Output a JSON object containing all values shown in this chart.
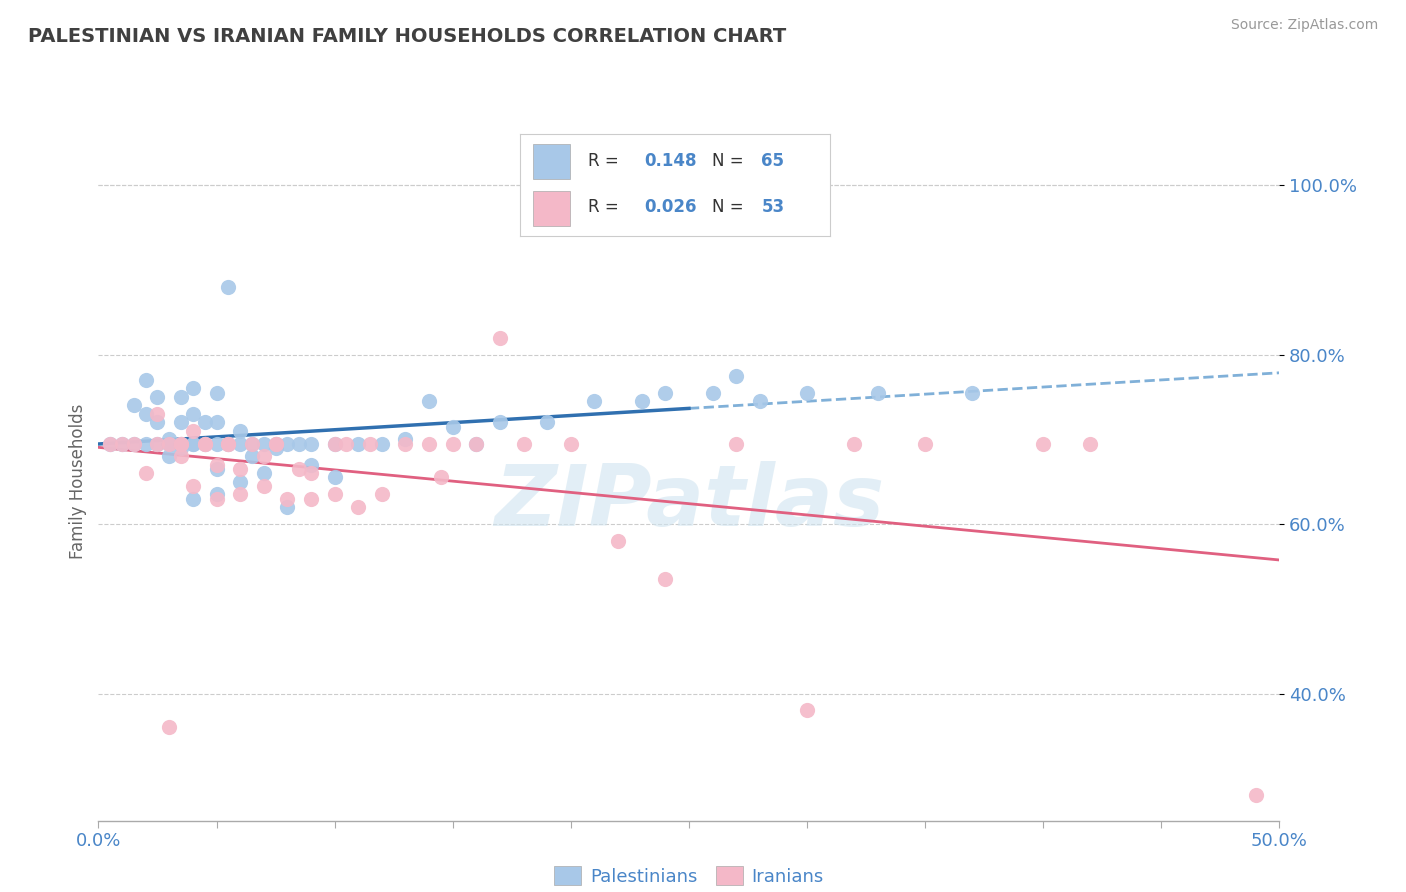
{
  "title": "PALESTINIAN VS IRANIAN FAMILY HOUSEHOLDS CORRELATION CHART",
  "source": "Source: ZipAtlas.com",
  "ylabel": "Family Households",
  "xlim": [
    0.0,
    0.5
  ],
  "ylim": [
    0.25,
    1.05
  ],
  "xticks": [
    0.0,
    0.05,
    0.1,
    0.15,
    0.2,
    0.25,
    0.3,
    0.35,
    0.4,
    0.45,
    0.5
  ],
  "xticklabels": [
    "0.0%",
    "",
    "",
    "",
    "",
    "",
    "",
    "",
    "",
    "",
    "50.0%"
  ],
  "yticks": [
    0.4,
    0.6,
    0.8,
    1.0
  ],
  "yticklabels": [
    "40.0%",
    "60.0%",
    "80.0%",
    "100.0%"
  ],
  "palestinian_color": "#a8c8e8",
  "iranian_color": "#f4b8c8",
  "trend_blue_color": "#3070b0",
  "trend_pink_color": "#e06080",
  "dashed_line_color": "#80b0d8",
  "watermark": "ZIPatlas",
  "palestinian_x": [
    0.005,
    0.01,
    0.015,
    0.015,
    0.02,
    0.02,
    0.02,
    0.025,
    0.025,
    0.025,
    0.03,
    0.03,
    0.03,
    0.03,
    0.035,
    0.035,
    0.035,
    0.035,
    0.04,
    0.04,
    0.04,
    0.04,
    0.04,
    0.045,
    0.045,
    0.05,
    0.05,
    0.05,
    0.05,
    0.05,
    0.055,
    0.055,
    0.06,
    0.06,
    0.06,
    0.065,
    0.065,
    0.07,
    0.07,
    0.075,
    0.075,
    0.08,
    0.08,
    0.085,
    0.09,
    0.09,
    0.1,
    0.1,
    0.11,
    0.12,
    0.13,
    0.14,
    0.15,
    0.16,
    0.17,
    0.19,
    0.21,
    0.23,
    0.24,
    0.26,
    0.27,
    0.28,
    0.3,
    0.33,
    0.37
  ],
  "palestinian_y": [
    0.695,
    0.695,
    0.695,
    0.74,
    0.695,
    0.73,
    0.77,
    0.695,
    0.72,
    0.75,
    0.695,
    0.695,
    0.68,
    0.7,
    0.695,
    0.69,
    0.72,
    0.75,
    0.63,
    0.695,
    0.73,
    0.76,
    0.695,
    0.695,
    0.72,
    0.635,
    0.665,
    0.695,
    0.72,
    0.755,
    0.695,
    0.88,
    0.65,
    0.695,
    0.71,
    0.695,
    0.68,
    0.695,
    0.66,
    0.695,
    0.69,
    0.62,
    0.695,
    0.695,
    0.67,
    0.695,
    0.655,
    0.695,
    0.695,
    0.695,
    0.7,
    0.745,
    0.715,
    0.695,
    0.72,
    0.72,
    0.745,
    0.745,
    0.755,
    0.755,
    0.775,
    0.745,
    0.755,
    0.755,
    0.755
  ],
  "iranian_x": [
    0.005,
    0.01,
    0.015,
    0.02,
    0.025,
    0.025,
    0.03,
    0.03,
    0.035,
    0.035,
    0.035,
    0.04,
    0.04,
    0.045,
    0.045,
    0.05,
    0.05,
    0.055,
    0.055,
    0.06,
    0.06,
    0.065,
    0.07,
    0.07,
    0.075,
    0.075,
    0.08,
    0.085,
    0.09,
    0.09,
    0.1,
    0.1,
    0.105,
    0.11,
    0.115,
    0.12,
    0.13,
    0.14,
    0.145,
    0.15,
    0.16,
    0.17,
    0.18,
    0.2,
    0.22,
    0.24,
    0.27,
    0.3,
    0.32,
    0.35,
    0.4,
    0.42,
    0.49
  ],
  "iranian_y": [
    0.695,
    0.695,
    0.695,
    0.66,
    0.695,
    0.73,
    0.695,
    0.36,
    0.695,
    0.695,
    0.68,
    0.645,
    0.71,
    0.695,
    0.695,
    0.63,
    0.67,
    0.695,
    0.695,
    0.635,
    0.665,
    0.695,
    0.645,
    0.68,
    0.695,
    0.695,
    0.63,
    0.665,
    0.63,
    0.66,
    0.635,
    0.695,
    0.695,
    0.62,
    0.695,
    0.635,
    0.695,
    0.695,
    0.655,
    0.695,
    0.695,
    0.82,
    0.695,
    0.695,
    0.58,
    0.535,
    0.695,
    0.38,
    0.695,
    0.695,
    0.695,
    0.695,
    0.28
  ],
  "trend_blue_start_x": 0.0,
  "trend_blue_end_x": 0.25,
  "trend_dashed_start_x": 0.25,
  "trend_dashed_end_x": 0.5
}
